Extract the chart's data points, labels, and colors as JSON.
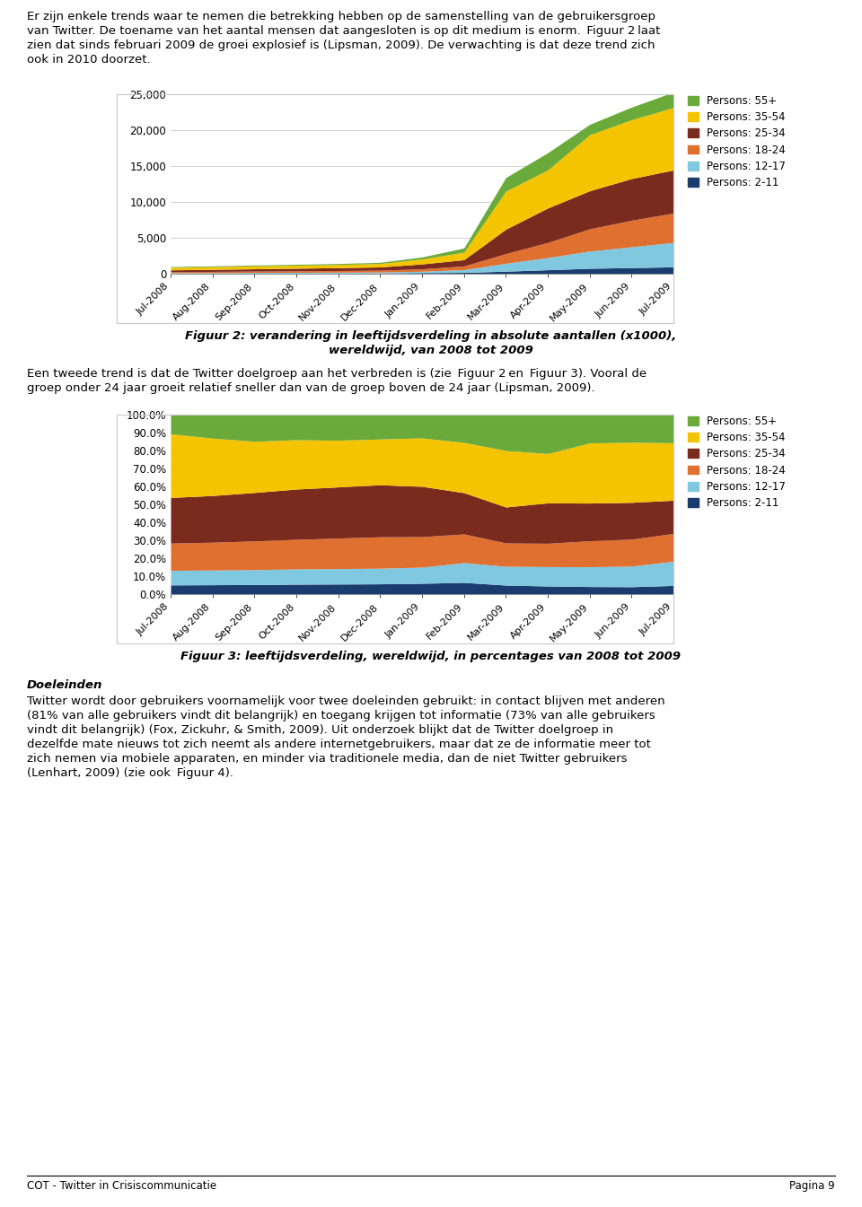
{
  "months": [
    "Jul-2008",
    "Aug-2008",
    "Sep-2008",
    "Oct-2008",
    "Nov-2008",
    "Dec-2008",
    "Jan-2009",
    "Feb-2009",
    "Mar-2009",
    "Apr-2009",
    "May-2009",
    "Jun-2009",
    "Jul-2009"
  ],
  "colors": {
    "55+": "#6aaa3a",
    "35-54": "#f5c400",
    "25-34": "#7b2a1e",
    "18-24": "#e07030",
    "12-17": "#80c8e0",
    "2-11": "#1a3c6e"
  },
  "legend_colors_order": [
    "55+",
    "35-54",
    "25-34",
    "18-24",
    "12-17",
    "2-11"
  ],
  "legend_labels_order": [
    "Persons: 55+",
    "Persons: 35-54",
    "Persons: 25-34",
    "Persons: 18-24",
    "Persons: 12-17",
    "Persons: 2-11"
  ],
  "age_groups_bottom_to_top": [
    "2-11",
    "12-17",
    "18-24",
    "25-34",
    "35-54",
    "55+"
  ],
  "abs_data": {
    "2-11": [
      50,
      60,
      70,
      80,
      90,
      100,
      150,
      180,
      350,
      550,
      750,
      850,
      950
    ],
    "12-17": [
      80,
      90,
      100,
      110,
      120,
      130,
      190,
      380,
      1100,
      1700,
      2400,
      2900,
      3400
    ],
    "18-24": [
      150,
      170,
      190,
      210,
      230,
      260,
      340,
      520,
      1350,
      2100,
      3100,
      3700,
      4100
    ],
    "25-34": [
      250,
      280,
      320,
      360,
      400,
      450,
      680,
      870,
      3400,
      4800,
      5300,
      5800,
      6000
    ],
    "35-54": [
      350,
      380,
      400,
      420,
      440,
      480,
      680,
      1050,
      5300,
      5300,
      7800,
      8200,
      8700
    ],
    "55+": [
      100,
      110,
      120,
      130,
      140,
      160,
      290,
      580,
      1900,
      2400,
      1450,
      1750,
      2150
    ]
  },
  "pct_data": {
    "2-11": [
      5.1,
      5.2,
      5.3,
      5.5,
      5.6,
      5.7,
      6.0,
      6.5,
      5.0,
      4.5,
      4.2,
      4.1,
      4.8
    ],
    "12-17": [
      8.1,
      8.2,
      8.3,
      8.5,
      8.6,
      8.7,
      9.0,
      11.0,
      10.5,
      10.8,
      11.0,
      11.5,
      13.5
    ],
    "18-24": [
      15.2,
      15.5,
      16.0,
      16.5,
      17.0,
      17.5,
      17.0,
      16.0,
      13.0,
      13.0,
      14.5,
      15.0,
      15.5
    ],
    "25-34": [
      25.4,
      26.0,
      27.0,
      28.0,
      28.5,
      29.0,
      28.0,
      23.0,
      20.0,
      22.5,
      21.0,
      20.5,
      18.5
    ],
    "35-54": [
      35.5,
      32.0,
      28.5,
      27.5,
      26.0,
      25.5,
      27.0,
      28.0,
      31.5,
      27.5,
      33.5,
      33.5,
      32.0
    ],
    "55+": [
      10.7,
      13.1,
      14.9,
      14.0,
      14.3,
      13.6,
      13.0,
      15.5,
      20.0,
      21.7,
      15.8,
      15.4,
      15.7
    ]
  },
  "fig2_title1": "Figuur 2: verandering in leeftijdsverdeling in absolute aantallen (x1000),",
  "fig2_title2": "wereldwijd, van 2008 tot 2009",
  "fig3_title": "Figuur 3: leeftijdsverdeling, wereldwijd, in percentages van 2008 tot 2009",
  "abs_ylim": [
    0,
    25000
  ],
  "abs_yticks": [
    0,
    5000,
    10000,
    15000,
    20000,
    25000
  ],
  "pct_ylim": [
    0,
    100
  ],
  "pct_yticks": [
    0,
    10,
    20,
    30,
    40,
    50,
    60,
    70,
    80,
    90,
    100
  ],
  "background_color": "#ffffff",
  "chart_bg": "#ffffff",
  "grid_color": "#c8c8c8",
  "box_color": "#c8c8c8",
  "footer_left": "COT - Twitter in Crisiscommunicatie",
  "footer_right": "Pagina 9",
  "top_text": [
    "Er zijn enkele trends waar te nemen die betrekking hebben op de samenstelling van de gebruikersgroep",
    "van Twitter. De toename van het aantal mensen dat aangesloten is op dit medium is enorm.  Figuur 2 laat",
    "zien dat sinds februari 2009 de groei explosief is (Lipsman, 2009). De verwachting is dat deze trend zich",
    "ook in 2010 doorzet."
  ],
  "mid_text": [
    "Een tweede trend is dat de Twitter doelgroep aan het verbreden is (zie  Figuur 2 en  Figuur 3). Vooral de",
    "groep onder 24 jaar groeit relatief sneller dan van de groep boven de 24 jaar (Lipsman, 2009)."
  ],
  "doeleinden_header": "Doeleinden",
  "doeleinden_body": [
    "Twitter wordt door gebruikers voornamelijk voor twee doeleinden gebruikt: in contact blijven met anderen",
    "(81% van alle gebruikers vindt dit belangrijk) en toegang krijgen tot informatie (73% van alle gebruikers",
    "vindt dit belangrijk) (Fox, Zickuhr, & Smith, 2009). Uit onderzoek blijkt dat de Twitter doelgroep in",
    "dezelfde mate nieuws tot zich neemt als andere internetgebruikers, maar dat ze de informatie meer tot",
    "zich nemen via mobiele apparaten, en minder via traditionele media, dan de niet Twitter gebruikers",
    "(Lenhart, 2009) (zie ook  Figuur 4)."
  ]
}
